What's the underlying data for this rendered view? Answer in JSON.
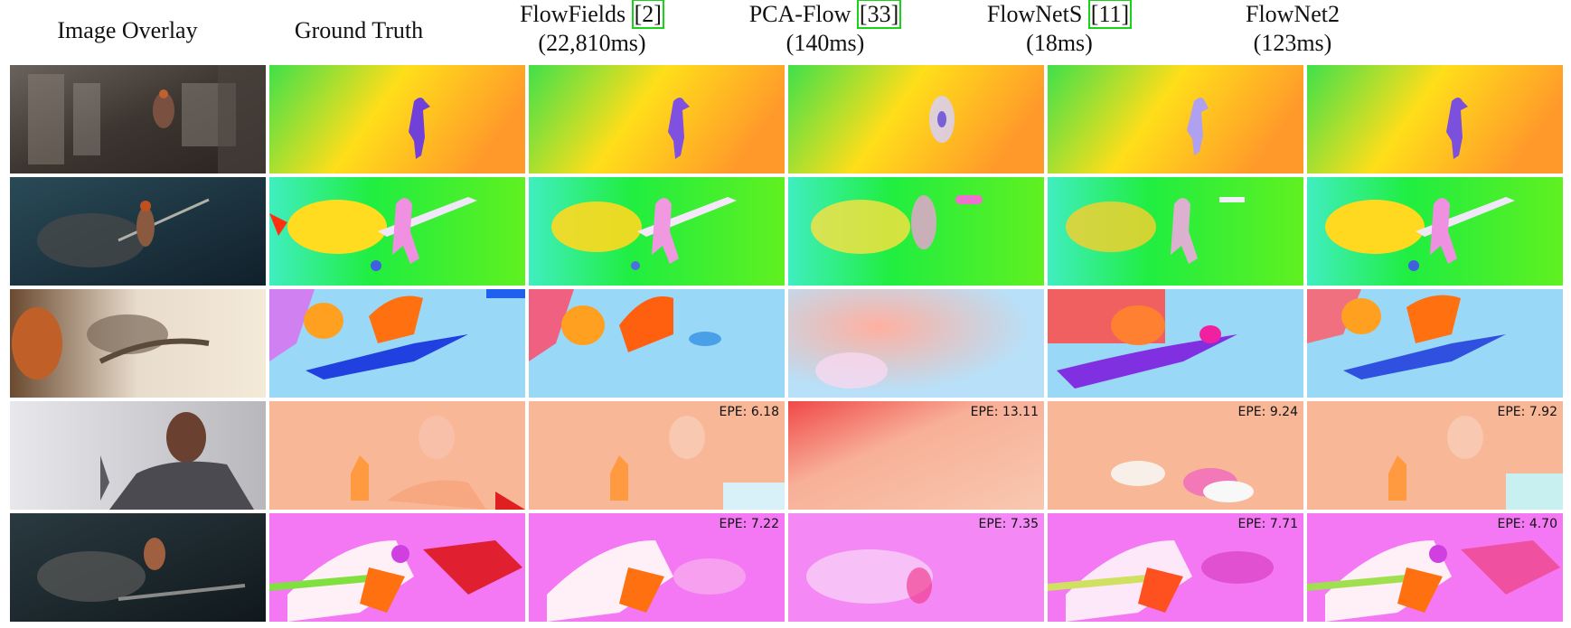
{
  "columns": [
    {
      "title": "Image Overlay",
      "subtitle": ""
    },
    {
      "title": "Ground Truth",
      "subtitle": ""
    },
    {
      "title": "FlowFields",
      "ref": "2",
      "subtitle": "(22,810ms)"
    },
    {
      "title": "PCA-Flow",
      "ref": "33",
      "subtitle": "(140ms)"
    },
    {
      "title": "FlowNetS",
      "ref": "11",
      "subtitle": "(18ms)"
    },
    {
      "title": "FlowNet2",
      "subtitle": "(123ms)"
    }
  ],
  "epe": {
    "row4": {
      "flowfields": "EPE: 6.18",
      "pcaflow": "EPE: 13.11",
      "flownets": "EPE: 9.24",
      "flownet2": "EPE: 7.92"
    },
    "row5": {
      "flowfields": "EPE: 7.22",
      "pcaflow": "EPE: 7.35",
      "flownets": "EPE: 7.71",
      "flownet2": "EPE: 4.70"
    }
  },
  "colors": {
    "ref_box": "#17d417",
    "row1_bg": [
      "#3fe04a",
      "#ffde1a",
      "#ff9a2a"
    ],
    "row2_bg": [
      "#38f0a0",
      "#28ee3a",
      "#70f020"
    ],
    "row3_bg": "#9ad8f8",
    "row4_bg": "#f8b898",
    "row5_bg": "#f478f4"
  }
}
